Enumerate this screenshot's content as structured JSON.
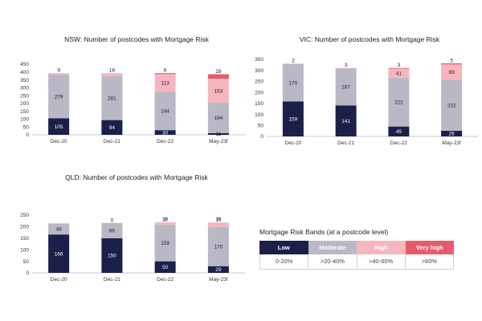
{
  "colors": {
    "low": "#1b1f4a",
    "moderate": "#b9b9c6",
    "high": "#f6b6bf",
    "very_high": "#e85a6a"
  },
  "chart_data": [
    {
      "type": "bar",
      "stacked": true,
      "title": "NSW: Number of postcodes with Mortgage Risk",
      "categories": [
        "Dec-20",
        "Dec-21",
        "Dec-22",
        "May-23f"
      ],
      "ylim": [
        0,
        450
      ],
      "yticks": [
        0,
        50,
        100,
        150,
        200,
        250,
        300,
        350,
        400,
        450
      ],
      "series": [
        {
          "key": "low",
          "values": [
            105,
            94,
            30,
            11
          ]
        },
        {
          "key": "moderate",
          "values": [
            279,
            281,
            244,
            194
          ]
        },
        {
          "key": "high",
          "values": [
            9,
            18,
            113,
            153
          ]
        },
        {
          "key": "very_high",
          "values": [
            0,
            0,
            6,
            28
          ]
        }
      ],
      "labels": [
        [
          "105",
          "279",
          "9",
          ""
        ],
        [
          "94",
          "281",
          "18",
          ""
        ],
        [
          "30",
          "244",
          "113",
          "6"
        ],
        [
          "11",
          "194",
          "153",
          "28"
        ]
      ]
    },
    {
      "type": "bar",
      "stacked": true,
      "title": "VIC: Number of postcodes with Mortgage Risk",
      "categories": [
        "Dec-20",
        "Dec-21",
        "Dec-22",
        "May-23f"
      ],
      "ylim": [
        0,
        350
      ],
      "yticks": [
        0,
        50,
        100,
        150,
        200,
        250,
        300,
        350
      ],
      "series": [
        {
          "key": "low",
          "values": [
            159,
            141,
            45,
            26
          ]
        },
        {
          "key": "moderate",
          "values": [
            170,
            167,
            222,
            232
          ]
        },
        {
          "key": "high",
          "values": [
            2,
            3,
            41,
            69
          ]
        },
        {
          "key": "very_high",
          "values": [
            0,
            0,
            3,
            5
          ]
        }
      ],
      "labels": [
        [
          "159",
          "170",
          "2",
          ""
        ],
        [
          "141",
          "167",
          "3",
          ""
        ],
        [
          "45",
          "222",
          "41",
          "3"
        ],
        [
          "26",
          "232",
          "69",
          "5"
        ]
      ]
    },
    {
      "type": "bar",
      "stacked": true,
      "title": "QLD: Number of postcodes with Mortgage Risk",
      "categories": [
        "Dec-20",
        "Dec-21",
        "Dec-22",
        "May-23f"
      ],
      "ylim": [
        0,
        250
      ],
      "yticks": [
        0,
        50,
        100,
        150,
        200,
        250
      ],
      "series": [
        {
          "key": "low",
          "values": [
            166,
            150,
            50,
            29
          ]
        },
        {
          "key": "moderate",
          "values": [
            48,
            66,
            159,
            170
          ]
        },
        {
          "key": "high",
          "values": [
            0,
            0,
            10,
            19
          ]
        },
        {
          "key": "very_high",
          "values": [
            0,
            0,
            0,
            0
          ]
        }
      ],
      "labels": [
        [
          "166",
          "48",
          "",
          ""
        ],
        [
          "150",
          "66",
          "0",
          ""
        ],
        [
          "50",
          "159",
          "10",
          "0"
        ],
        [
          "29",
          "170",
          "19",
          "0"
        ]
      ]
    }
  ],
  "legend": {
    "title": "Mortgage Risk Bands (at a postcode level)",
    "bands": [
      {
        "key": "low",
        "label": "Low",
        "range": "0-20%"
      },
      {
        "key": "moderate",
        "label": "Moderate",
        "range": ">20-40%"
      },
      {
        "key": "high",
        "label": "High",
        "range": ">40-60%"
      },
      {
        "key": "very_high",
        "label": "Very high",
        "range": ">60%"
      }
    ]
  }
}
